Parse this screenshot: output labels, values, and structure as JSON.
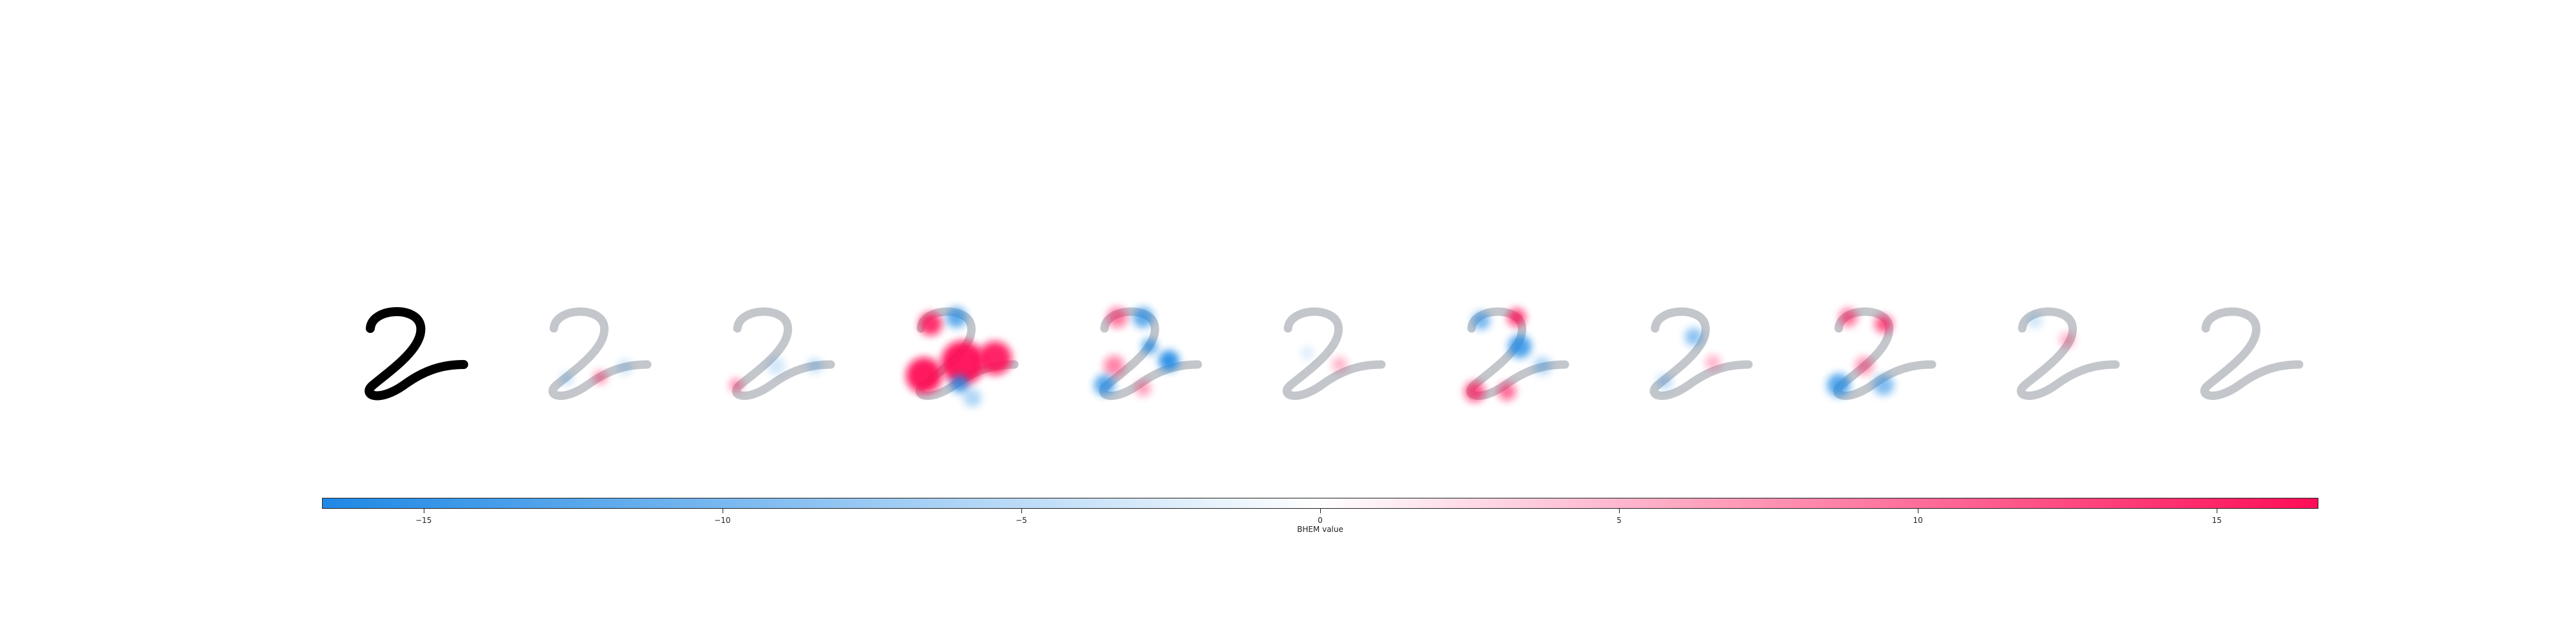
{
  "chart_data": {
    "type": "heatmap",
    "title": "",
    "panel_count": 11,
    "panels": [
      {
        "kind": "original-image",
        "glyph": "2",
        "color": "#000000"
      },
      {
        "kind": "attribution-map",
        "dominant_sign": "mixed-weak"
      },
      {
        "kind": "attribution-map",
        "dominant_sign": "mixed-weak"
      },
      {
        "kind": "attribution-map",
        "dominant_sign": "strong-positive"
      },
      {
        "kind": "attribution-map",
        "dominant_sign": "mixed-strong"
      },
      {
        "kind": "attribution-map",
        "dominant_sign": "mixed-weak"
      },
      {
        "kind": "attribution-map",
        "dominant_sign": "mixed-strong"
      },
      {
        "kind": "attribution-map",
        "dominant_sign": "mixed-weak"
      },
      {
        "kind": "attribution-map",
        "dominant_sign": "mixed-strong"
      },
      {
        "kind": "attribution-map",
        "dominant_sign": "weak"
      },
      {
        "kind": "attribution-map",
        "dominant_sign": "neutral"
      }
    ],
    "colorbar": {
      "label": "BHEM value",
      "range": [
        -16.7,
        16.7
      ],
      "ticks": [
        -15,
        -10,
        -5,
        0,
        5,
        10,
        15
      ],
      "tick_labels": [
        "−15",
        "−10",
        "−5",
        "0",
        "5",
        "10",
        "15"
      ],
      "colors": {
        "negative": "#1e88e5",
        "neutral": "#ffffff",
        "positive": "#ff0d57"
      }
    },
    "background_glyph_color": "#b9bcc2"
  }
}
